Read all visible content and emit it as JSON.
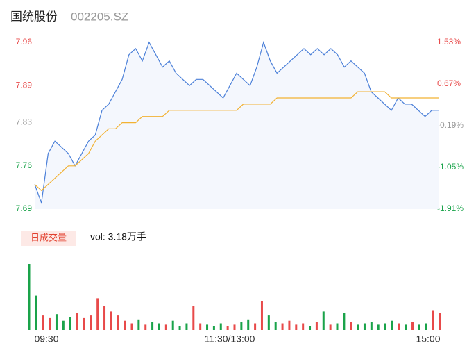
{
  "title": "国统股份",
  "code": "002205.SZ",
  "chart_data": [
    {
      "type": "line",
      "ylim": [
        7.69,
        7.96
      ],
      "yticks": [
        7.96,
        7.89,
        7.83,
        7.76,
        7.69
      ],
      "y2lim": [
        -1.91,
        1.53
      ],
      "y2ticks": [
        {
          "value": 1.53,
          "label": "1.53%"
        },
        {
          "value": 0.67,
          "label": "0.67%"
        },
        {
          "value": -0.19,
          "label": "-0.19%"
        },
        {
          "value": -1.05,
          "label": "-1.05%"
        },
        {
          "value": -1.91,
          "label": "-1.91%"
        }
      ],
      "xlim": [
        0,
        60
      ],
      "grid": false,
      "series": [
        {
          "color": "#4a7fd8",
          "values": [
            7.73,
            7.7,
            7.78,
            7.8,
            7.79,
            7.78,
            7.76,
            7.78,
            7.8,
            7.81,
            7.85,
            7.86,
            7.88,
            7.9,
            7.94,
            7.95,
            7.93,
            7.96,
            7.94,
            7.92,
            7.93,
            7.91,
            7.9,
            7.89,
            7.9,
            7.9,
            7.89,
            7.88,
            7.87,
            7.89,
            7.91,
            7.9,
            7.89,
            7.92,
            7.96,
            7.93,
            7.91,
            7.92,
            7.93,
            7.94,
            7.95,
            7.94,
            7.95,
            7.94,
            7.95,
            7.94,
            7.92,
            7.93,
            7.92,
            7.91,
            7.88,
            7.87,
            7.86,
            7.85,
            7.87,
            7.86,
            7.86,
            7.85,
            7.84,
            7.85,
            7.85
          ]
        },
        {
          "color": "#f2b233",
          "values": [
            7.73,
            7.72,
            7.73,
            7.74,
            7.75,
            7.76,
            7.76,
            7.77,
            7.78,
            7.8,
            7.81,
            7.82,
            7.82,
            7.83,
            7.83,
            7.83,
            7.84,
            7.84,
            7.84,
            7.84,
            7.85,
            7.85,
            7.85,
            7.85,
            7.85,
            7.85,
            7.85,
            7.85,
            7.85,
            7.85,
            7.85,
            7.86,
            7.86,
            7.86,
            7.86,
            7.86,
            7.87,
            7.87,
            7.87,
            7.87,
            7.87,
            7.87,
            7.87,
            7.87,
            7.87,
            7.87,
            7.87,
            7.87,
            7.88,
            7.88,
            7.88,
            7.88,
            7.88,
            7.87,
            7.87,
            7.87,
            7.87,
            7.87,
            7.87,
            7.87,
            7.87
          ]
        }
      ]
    },
    {
      "type": "bar",
      "title": "日成交量",
      "subtitle": "vol: 3.18万手",
      "ylim": [
        0,
        100
      ],
      "xlim": [
        0,
        60
      ],
      "xticks": [
        {
          "value": 0,
          "label": "09:30"
        },
        {
          "value": 30,
          "label": "11:30/13:00"
        },
        {
          "value": 60,
          "label": "15:00"
        }
      ],
      "up_color": "#e84a4a",
      "down_color": "#1aa34a",
      "values": [
        100,
        52,
        22,
        18,
        24,
        14,
        20,
        26,
        18,
        22,
        48,
        36,
        28,
        22,
        14,
        10,
        16,
        8,
        12,
        10,
        8,
        14,
        6,
        10,
        36,
        10,
        8,
        6,
        10,
        6,
        8,
        12,
        16,
        10,
        44,
        22,
        12,
        10,
        14,
        8,
        10,
        6,
        12,
        28,
        8,
        10,
        26,
        12,
        8,
        10,
        12,
        8,
        10,
        14,
        10,
        8,
        12,
        8,
        10,
        30,
        26
      ]
    }
  ]
}
